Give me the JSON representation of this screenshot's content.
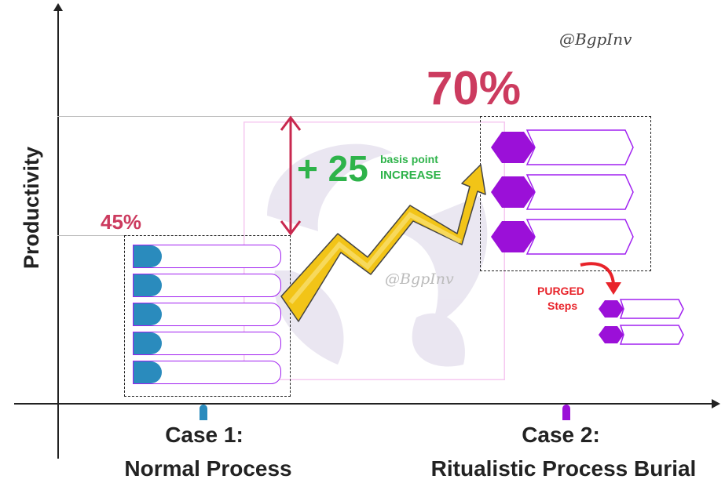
{
  "watermark": {
    "text": "@BgpInv"
  },
  "y_axis": {
    "label": "Productivity"
  },
  "case1": {
    "percent": "45%",
    "line1": "Case 1:",
    "line2": "Normal Process",
    "steps": 5,
    "color": "#2a8bbd"
  },
  "case2": {
    "percent": "70%",
    "line1": "Case 2:",
    "line2": "Ritualistic Process Burial",
    "steps": 3,
    "color": "#9b10d8"
  },
  "increase": {
    "value": "+ 25",
    "line1": "basis point",
    "line2": "INCREASE",
    "color": "#2eb34a"
  },
  "purged": {
    "line1": "PURGED",
    "line2": "Steps",
    "steps": 2,
    "color": "#e8232a"
  },
  "colors": {
    "accent_pct": "#cc3b5f",
    "arrow_fill": "#f2c417",
    "double_arrow": "#c8284f",
    "bar_border": "#a020f0"
  }
}
